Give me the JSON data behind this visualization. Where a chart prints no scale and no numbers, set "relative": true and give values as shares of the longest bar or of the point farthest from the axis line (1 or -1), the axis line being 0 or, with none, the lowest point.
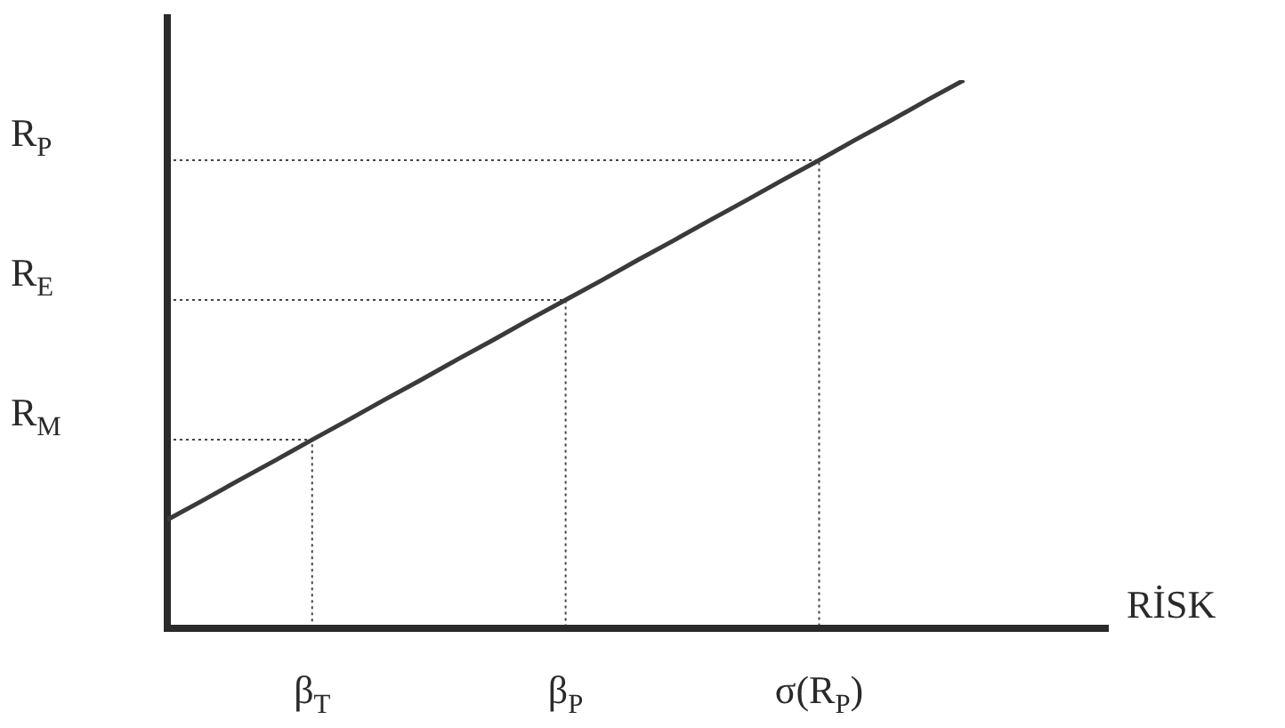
{
  "chart_data": {
    "type": "line",
    "relative": true,
    "xlabel": "RİSK",
    "categories": [
      null,
      null,
      null,
      null,
      "β$_{T}$",
      null,
      null,
      null,
      null,
      null,
      null,
      "β$_{P}$",
      null,
      null,
      null,
      null,
      null,
      null,
      "σ(R$_{P}$)",
      null,
      null,
      null,
      null,
      null,
      null,
      null,
      null
    ],
    "series": [
      {
        "color": "#3a3a3a",
        "values": [
          0.198,
          0.234,
          0.271,
          0.307,
          0.344,
          0.38,
          0.417,
          0.453,
          0.49,
          0.526,
          0.563,
          0.599,
          0.635,
          0.672,
          0.708,
          0.745,
          0.781,
          0.818,
          0.854,
          0.891,
          0.927,
          0.964,
          1,
          null,
          null,
          null,
          null
        ]
      }
    ],
    "ref_lines": [
      {
        "axis": "y",
        "value": 0.344,
        "label": "R$_{M}$",
        "line_style": "dotted"
      },
      {
        "axis": "y",
        "value": 0.599,
        "label": "R$_{E}$",
        "line_style": "dotted"
      },
      {
        "axis": "y",
        "value": 0.854,
        "label": "R$_{P}$",
        "line_style": "dotted"
      }
    ],
    "grid": false,
    "legend": false,
    "marker": "none",
    "line_style": "solid"
  }
}
